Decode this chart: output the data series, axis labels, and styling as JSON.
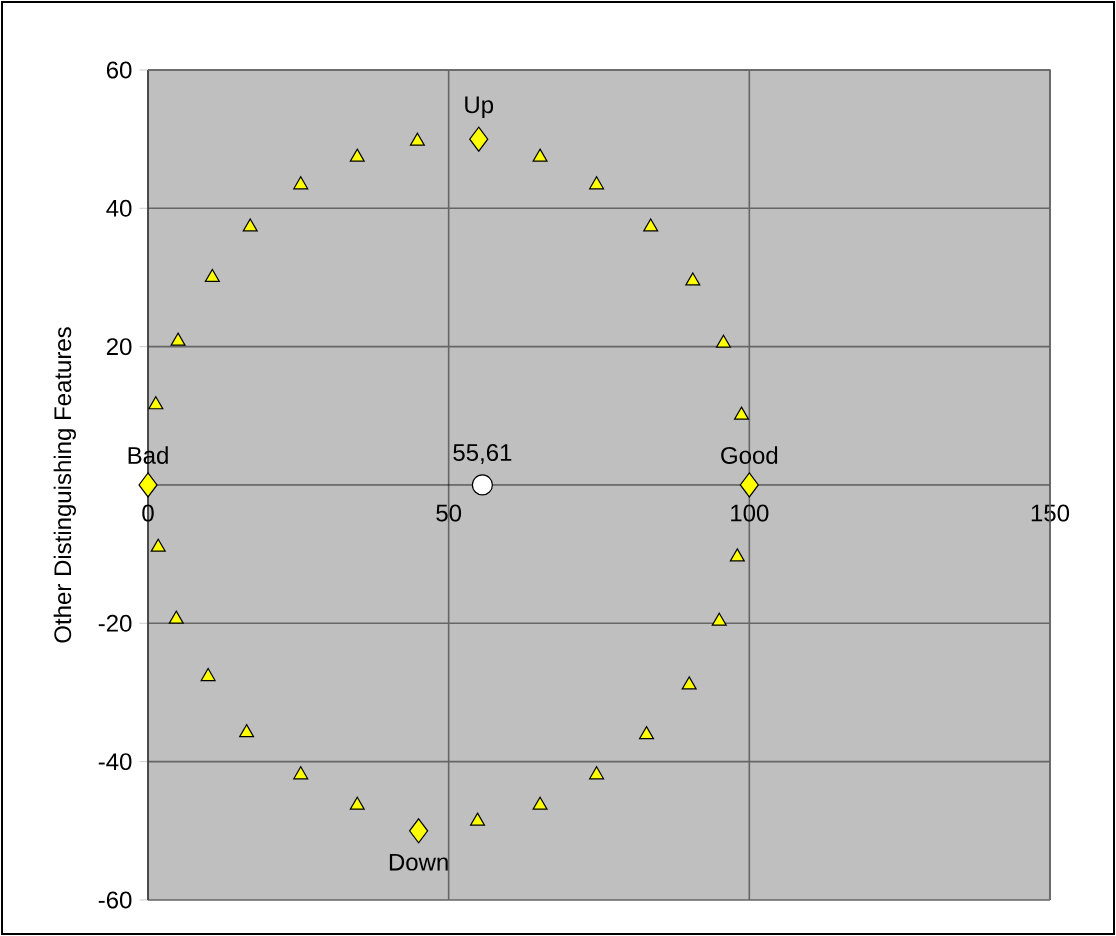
{
  "chart_data": {
    "type": "scatter",
    "ylabel": "Other Distinguishing Features",
    "xlim": [
      0,
      150
    ],
    "ylim": [
      -60,
      60
    ],
    "xticks": [
      0,
      50,
      100,
      150
    ],
    "yticks": [
      -60,
      -40,
      -20,
      20,
      40,
      60
    ],
    "grid": true,
    "series": [
      {
        "color": "#ffff00",
        "marker": "triangle",
        "x": [
          1.3,
          5,
          10.7,
          17,
          25.4,
          34.8,
          44.8,
          65.2,
          74.6,
          83.6,
          90.6,
          95.7,
          98.7,
          1.7,
          4.7,
          10,
          16.4,
          25.4,
          34.8,
          54.8,
          65.2,
          74.6,
          82.9,
          90,
          95,
          98
        ],
        "values": [
          11.6,
          20.8,
          30,
          37.3,
          43.4,
          47.4,
          49.7,
          47.4,
          43.4,
          37.3,
          29.5,
          20.5,
          10.1,
          -9,
          -19.4,
          -27.7,
          -35.8,
          -41.9,
          -46.3,
          -48.6,
          -46.3,
          -41.9,
          -36.1,
          -28.9,
          -19.7,
          -10.4
        ]
      },
      {
        "color": "#ffff00",
        "marker": "diamond",
        "x": [
          0,
          55,
          100,
          45
        ],
        "values": [
          0,
          50,
          0,
          -50
        ]
      },
      {
        "color": "#ffffff",
        "marker": "circle",
        "x": [
          55.61
        ],
        "values": [
          0
        ]
      }
    ],
    "annotations": [
      {
        "text": "55,61",
        "x": 55.61,
        "y": 0
      },
      {
        "text": "Bad",
        "x": 0,
        "y": 0
      },
      {
        "text": "Up",
        "x": 55,
        "y": 50
      },
      {
        "text": "Good",
        "x": 100,
        "y": 0
      },
      {
        "text": "Down",
        "x": 45,
        "y": -50
      }
    ]
  }
}
